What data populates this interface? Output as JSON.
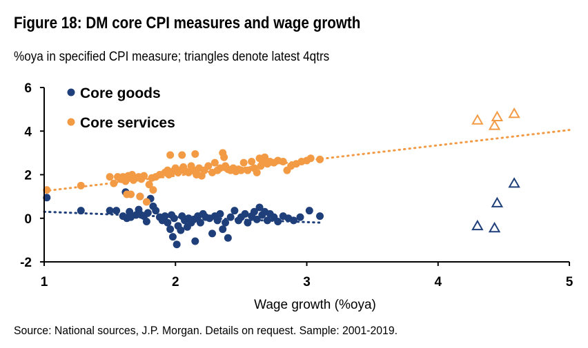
{
  "figure": {
    "title": "Figure 18: DM core CPI measures and wage growth",
    "subtitle": "%oya in specified CPI measure; triangles denote latest 4qtrs",
    "source": "Source: National sources, J.P. Morgan. Details on request. Sample: 2001-2019."
  },
  "chart_data": {
    "type": "scatter",
    "xlabel": "Wage growth (%oya)",
    "ylabel": "",
    "xlim": [
      1,
      5
    ],
    "ylim": [
      -2,
      6
    ],
    "x_ticks": [
      "1",
      "2",
      "3",
      "4",
      "5"
    ],
    "y_ticks": [
      "6",
      "4",
      "2",
      "0",
      "-2"
    ],
    "legend_position": "top-left",
    "colors": {
      "goods": "#1f3f7a",
      "services": "#f39a45"
    },
    "series": [
      {
        "name": "Core goods",
        "marker": "circle",
        "points": [
          [
            1.02,
            0.95
          ],
          [
            1.28,
            0.35
          ],
          [
            1.5,
            0.35
          ],
          [
            1.55,
            0.35
          ],
          [
            1.6,
            0.1
          ],
          [
            1.62,
            1.2
          ],
          [
            1.63,
            0.0
          ],
          [
            1.65,
            0.3
          ],
          [
            1.66,
            0.05
          ],
          [
            1.7,
            0.15
          ],
          [
            1.72,
            0.4
          ],
          [
            1.73,
            1.0
          ],
          [
            1.74,
            0.15
          ],
          [
            1.76,
            0.1
          ],
          [
            1.78,
            -0.15
          ],
          [
            1.79,
            0.25
          ],
          [
            1.81,
            0.9
          ],
          [
            1.83,
            0.55
          ],
          [
            1.85,
            0.35
          ],
          [
            1.88,
            0.05
          ],
          [
            1.9,
            -0.1
          ],
          [
            1.92,
            0.1
          ],
          [
            1.94,
            -0.2
          ],
          [
            1.96,
            -0.5
          ],
          [
            1.97,
            0.15
          ],
          [
            1.98,
            -0.85
          ],
          [
            1.99,
            0.0
          ],
          [
            2.01,
            -1.2
          ],
          [
            2.02,
            -0.35
          ],
          [
            2.04,
            -0.55
          ],
          [
            2.05,
            0.1
          ],
          [
            2.07,
            -0.1
          ],
          [
            2.09,
            -0.4
          ],
          [
            2.1,
            0.0
          ],
          [
            2.12,
            -0.2
          ],
          [
            2.14,
            -0.05
          ],
          [
            2.15,
            -1.05
          ],
          [
            2.17,
            0.1
          ],
          [
            2.19,
            -0.2
          ],
          [
            2.21,
            0.2
          ],
          [
            2.23,
            0.05
          ],
          [
            2.26,
            0.0
          ],
          [
            2.28,
            -0.7
          ],
          [
            2.3,
            0.1
          ],
          [
            2.32,
            -0.1
          ],
          [
            2.34,
            0.2
          ],
          [
            2.36,
            -0.5
          ],
          [
            2.38,
            -0.2
          ],
          [
            2.4,
            -0.9
          ],
          [
            2.42,
            0.05
          ],
          [
            2.45,
            0.35
          ],
          [
            2.48,
            -0.1
          ],
          [
            2.5,
            0.05
          ],
          [
            2.53,
            0.2
          ],
          [
            2.55,
            -0.2
          ],
          [
            2.58,
            0.1
          ],
          [
            2.6,
            0.3
          ],
          [
            2.62,
            -0.05
          ],
          [
            2.64,
            0.5
          ],
          [
            2.66,
            0.15
          ],
          [
            2.68,
            0.3
          ],
          [
            2.7,
            -0.1
          ],
          [
            2.72,
            0.2
          ],
          [
            2.75,
            0.05
          ],
          [
            2.78,
            -0.15
          ],
          [
            2.82,
            0.1
          ],
          [
            2.86,
            0.0
          ],
          [
            2.9,
            -0.1
          ],
          [
            2.95,
            0.05
          ],
          [
            3.02,
            0.35
          ],
          [
            3.1,
            0.1
          ]
        ]
      },
      {
        "name": "Core services",
        "marker": "circle",
        "points": [
          [
            1.02,
            1.3
          ],
          [
            1.28,
            1.5
          ],
          [
            1.5,
            1.9
          ],
          [
            1.53,
            1.6
          ],
          [
            1.56,
            1.9
          ],
          [
            1.58,
            1.8
          ],
          [
            1.6,
            1.9
          ],
          [
            1.62,
            1.7
          ],
          [
            1.63,
            1.1
          ],
          [
            1.64,
            1.95
          ],
          [
            1.65,
            1.85
          ],
          [
            1.66,
            1.1
          ],
          [
            1.67,
            2.0
          ],
          [
            1.68,
            1.75
          ],
          [
            1.7,
            1.85
          ],
          [
            1.72,
            1.9
          ],
          [
            1.73,
            1.0
          ],
          [
            1.74,
            1.8
          ],
          [
            1.75,
            1.9
          ],
          [
            1.76,
            1.95
          ],
          [
            1.78,
            0.75
          ],
          [
            1.8,
            1.55
          ],
          [
            1.82,
            1.85
          ],
          [
            1.83,
            1.3
          ],
          [
            1.85,
            1.9
          ],
          [
            1.88,
            2.0
          ],
          [
            1.92,
            2.1
          ],
          [
            1.94,
            2.2
          ],
          [
            1.95,
            2.0
          ],
          [
            1.96,
            2.9
          ],
          [
            1.98,
            2.15
          ],
          [
            2.0,
            2.3
          ],
          [
            2.02,
            2.1
          ],
          [
            2.04,
            2.2
          ],
          [
            2.05,
            2.9
          ],
          [
            2.06,
            2.35
          ],
          [
            2.08,
            2.15
          ],
          [
            2.1,
            2.1
          ],
          [
            2.12,
            2.4
          ],
          [
            2.14,
            2.2
          ],
          [
            2.15,
            2.95
          ],
          [
            2.16,
            2.0
          ],
          [
            2.18,
            2.3
          ],
          [
            2.2,
            1.95
          ],
          [
            2.22,
            2.2
          ],
          [
            2.25,
            2.4
          ],
          [
            2.28,
            2.1
          ],
          [
            2.3,
            2.55
          ],
          [
            2.32,
            2.2
          ],
          [
            2.34,
            2.3
          ],
          [
            2.36,
            3.0
          ],
          [
            2.37,
            2.8
          ],
          [
            2.38,
            2.4
          ],
          [
            2.4,
            2.25
          ],
          [
            2.42,
            2.2
          ],
          [
            2.44,
            2.3
          ],
          [
            2.46,
            2.15
          ],
          [
            2.48,
            2.25
          ],
          [
            2.5,
            2.2
          ],
          [
            2.52,
            2.55
          ],
          [
            2.55,
            2.2
          ],
          [
            2.58,
            2.6
          ],
          [
            2.6,
            2.3
          ],
          [
            2.62,
            2.1
          ],
          [
            2.64,
            2.75
          ],
          [
            2.65,
            2.4
          ],
          [
            2.66,
            2.65
          ],
          [
            2.68,
            2.8
          ],
          [
            2.7,
            2.5
          ],
          [
            2.72,
            2.6
          ],
          [
            2.75,
            2.55
          ],
          [
            2.78,
            2.65
          ],
          [
            2.82,
            2.6
          ],
          [
            2.85,
            2.2
          ],
          [
            2.88,
            2.4
          ],
          [
            2.92,
            2.5
          ],
          [
            2.96,
            2.6
          ],
          [
            3.0,
            2.65
          ],
          [
            3.03,
            2.75
          ],
          [
            3.1,
            2.7
          ]
        ]
      },
      {
        "name": "Core goods latest 4qtrs",
        "marker": "triangle",
        "points": [
          [
            4.3,
            -0.35
          ],
          [
            4.43,
            -0.45
          ],
          [
            4.45,
            0.7
          ],
          [
            4.58,
            1.6
          ]
        ]
      },
      {
        "name": "Core services latest 4qtrs",
        "marker": "triangle",
        "points": [
          [
            4.3,
            4.5
          ],
          [
            4.43,
            4.25
          ],
          [
            4.45,
            4.65
          ],
          [
            4.58,
            4.8
          ]
        ]
      }
    ],
    "trendlines": [
      {
        "series": "Core goods",
        "from": [
          1.0,
          0.3
        ],
        "to": [
          3.1,
          -0.2
        ]
      },
      {
        "series": "Core services",
        "from": [
          1.0,
          1.25
        ],
        "to": [
          5.0,
          4.05
        ]
      }
    ]
  }
}
